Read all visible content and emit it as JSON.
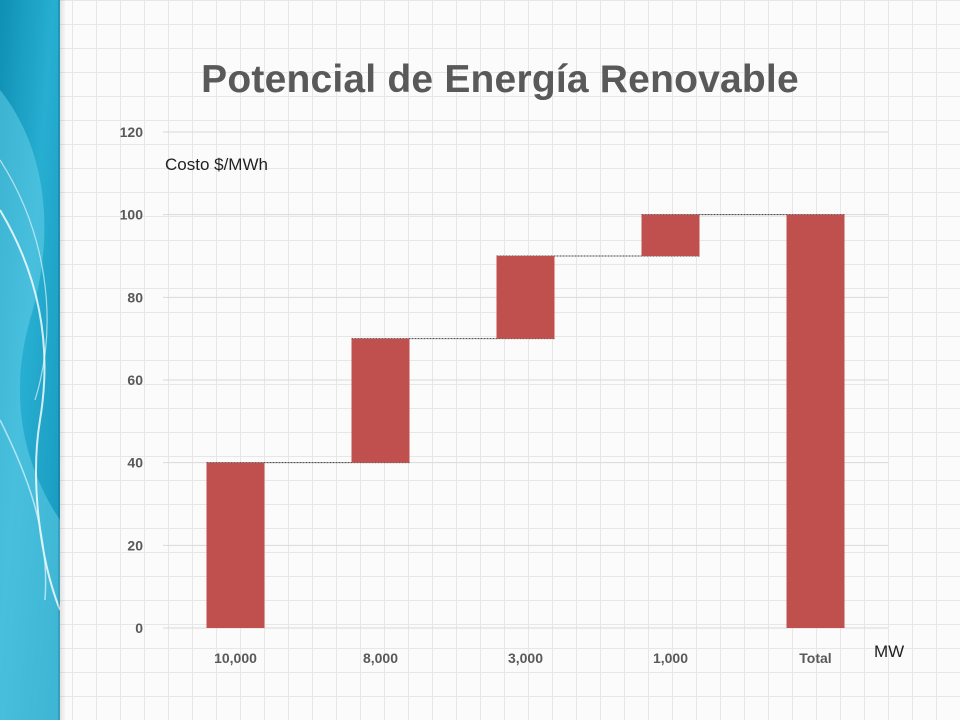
{
  "slide": {
    "title": "Potencial de Energía Renovable"
  },
  "colors": {
    "bar": "#c0504d",
    "gridline": "#d9d9d9",
    "connector": "#404040",
    "band_dark": "#1aa0c4",
    "band_light": "#63cde8"
  },
  "chart_data": {
    "type": "bar",
    "subtype": "waterfall",
    "title": "Potencial de Energía Renovable",
    "ylabel": "Costo $/MWh",
    "xlabel": "MW",
    "categories": [
      "10,000",
      "8,000",
      "3,000",
      "1,000",
      "Total"
    ],
    "bars": [
      {
        "category": "10,000",
        "base": 0,
        "top": 40
      },
      {
        "category": "8,000",
        "base": 40,
        "top": 70
      },
      {
        "category": "3,000",
        "base": 70,
        "top": 90
      },
      {
        "category": "1,000",
        "base": 90,
        "top": 100
      },
      {
        "category": "Total",
        "base": 0,
        "top": 100
      }
    ],
    "connectors": [
      40,
      70,
      90,
      100
    ],
    "y_ticks": [
      0,
      20,
      40,
      60,
      80,
      100,
      120
    ],
    "ylim": [
      0,
      120
    ],
    "grid": true,
    "legend": "none"
  }
}
